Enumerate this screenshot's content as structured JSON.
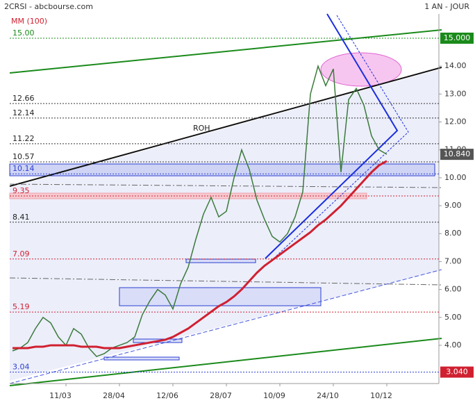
{
  "chart_data": {
    "type": "line",
    "title": "2CRSI - abcbourse.com",
    "subtitle": "1 AN - JOUR",
    "annotations": [
      "ROH"
    ],
    "categories": [
      null,
      null,
      null,
      null,
      null,
      null,
      null,
      "11/03",
      null,
      null,
      null,
      null,
      null,
      null,
      "28/04",
      null,
      null,
      null,
      null,
      null,
      null,
      "12/06",
      null,
      null,
      null,
      null,
      null,
      null,
      "28/07",
      null,
      null,
      null,
      null,
      null,
      null,
      "10/09",
      null,
      null,
      null,
      null,
      null,
      null,
      "24/10",
      null,
      null,
      null,
      null,
      null,
      null,
      "10/12"
    ],
    "series": [
      {
        "color": "#3a7a3a",
        "values": [
          3.8,
          3.9,
          4.1,
          4.6,
          5.0,
          4.8,
          4.3,
          4.0,
          4.6,
          4.4,
          3.9,
          3.6,
          3.7,
          3.9,
          4.0,
          4.1,
          4.3,
          5.1,
          5.6,
          6.0,
          5.8,
          5.3,
          6.2,
          6.8,
          7.8,
          8.7,
          9.3,
          8.6,
          8.8,
          10.0,
          11.0,
          10.3,
          9.2,
          8.5,
          7.9,
          7.7,
          8.0,
          8.6,
          9.5,
          13.0,
          14.0,
          13.3,
          13.9,
          10.2,
          12.8,
          13.2,
          12.6,
          11.5,
          11.0,
          10.84
        ]
      },
      {
        "name": "MM (100)",
        "color": "#d02030",
        "values": [
          3.9,
          3.9,
          3.9,
          3.95,
          3.95,
          4.0,
          4.0,
          4.0,
          4.0,
          3.95,
          3.95,
          3.95,
          3.9,
          3.9,
          3.9,
          3.95,
          4.0,
          4.05,
          4.1,
          4.15,
          4.2,
          4.3,
          4.45,
          4.6,
          4.8,
          5.0,
          5.2,
          5.4,
          5.55,
          5.75,
          6.0,
          6.3,
          6.6,
          6.85,
          7.05,
          7.25,
          7.45,
          7.65,
          7.85,
          8.05,
          8.3,
          8.5,
          8.75,
          9.0,
          9.3,
          9.6,
          9.9,
          10.2,
          10.45,
          10.6
        ]
      }
    ],
    "ylim": [
      2.68,
      15.87
    ],
    "yticks": [
      {
        "value": 4,
        "label": "4.00"
      },
      {
        "value": 5,
        "label": "5.00"
      },
      {
        "value": 6,
        "label": "6.00"
      },
      {
        "value": 7,
        "label": "7.00"
      },
      {
        "value": 8,
        "label": "8.00"
      },
      {
        "value": 9,
        "label": "9.00"
      },
      {
        "value": 10,
        "label": "10.00"
      },
      {
        "value": 11,
        "label": "11.00"
      },
      {
        "value": 12,
        "label": "12.00"
      },
      {
        "value": 13,
        "label": "13.00"
      },
      {
        "value": 14,
        "label": "14.00"
      }
    ],
    "levels": [
      {
        "value": 15,
        "label": "15.00",
        "color": "#1a8a1a"
      },
      {
        "value": 12.66,
        "label": "12.66",
        "color": "#333333"
      },
      {
        "value": 12.14,
        "label": "12.14",
        "color": "#333333"
      },
      {
        "value": 11.22,
        "label": "11.22",
        "color": "#333333"
      },
      {
        "value": 10.57,
        "label": "10.57",
        "color": "#333333"
      },
      {
        "value": 10.14,
        "label": "10.14",
        "color": "#2b3fd0"
      },
      {
        "value": 9.35,
        "label": "9.35",
        "color": "#d02030"
      },
      {
        "value": 8.41,
        "label": "8.41",
        "color": "#333333"
      },
      {
        "value": 7.09,
        "label": "7.09",
        "color": "#d02030"
      },
      {
        "value": 5.19,
        "label": "5.19",
        "color": "#d02030"
      },
      {
        "value": 3.04,
        "label": "3.04",
        "color": "#2b3fd0"
      }
    ],
    "price_boxes": [
      {
        "value": 15,
        "label": "15.000",
        "color": "#1a8a1a"
      },
      {
        "value": 10.84,
        "label": "10.840",
        "color": "#555555"
      },
      {
        "value": 3.04,
        "label": "3.040",
        "color": "#d02030"
      }
    ]
  }
}
